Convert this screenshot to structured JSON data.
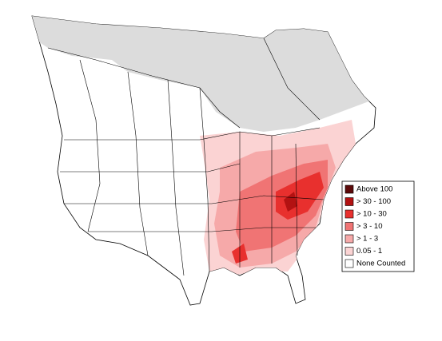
{
  "legend": {
    "items": [
      {
        "label": "Above 100",
        "color": "#5c0a0a"
      },
      {
        "label": "> 30 - 100",
        "color": "#b31212"
      },
      {
        "label": "> 10 - 30",
        "color": "#e8302e"
      },
      {
        "label": "> 3 - 10",
        "color": "#f07474"
      },
      {
        "label": "> 1 - 3",
        "color": "#f6a9a9"
      },
      {
        "label": "0.05 - 1",
        "color": "#fbd3d3"
      },
      {
        "label": "None Counted",
        "color": "#ffffff"
      }
    ]
  }
}
